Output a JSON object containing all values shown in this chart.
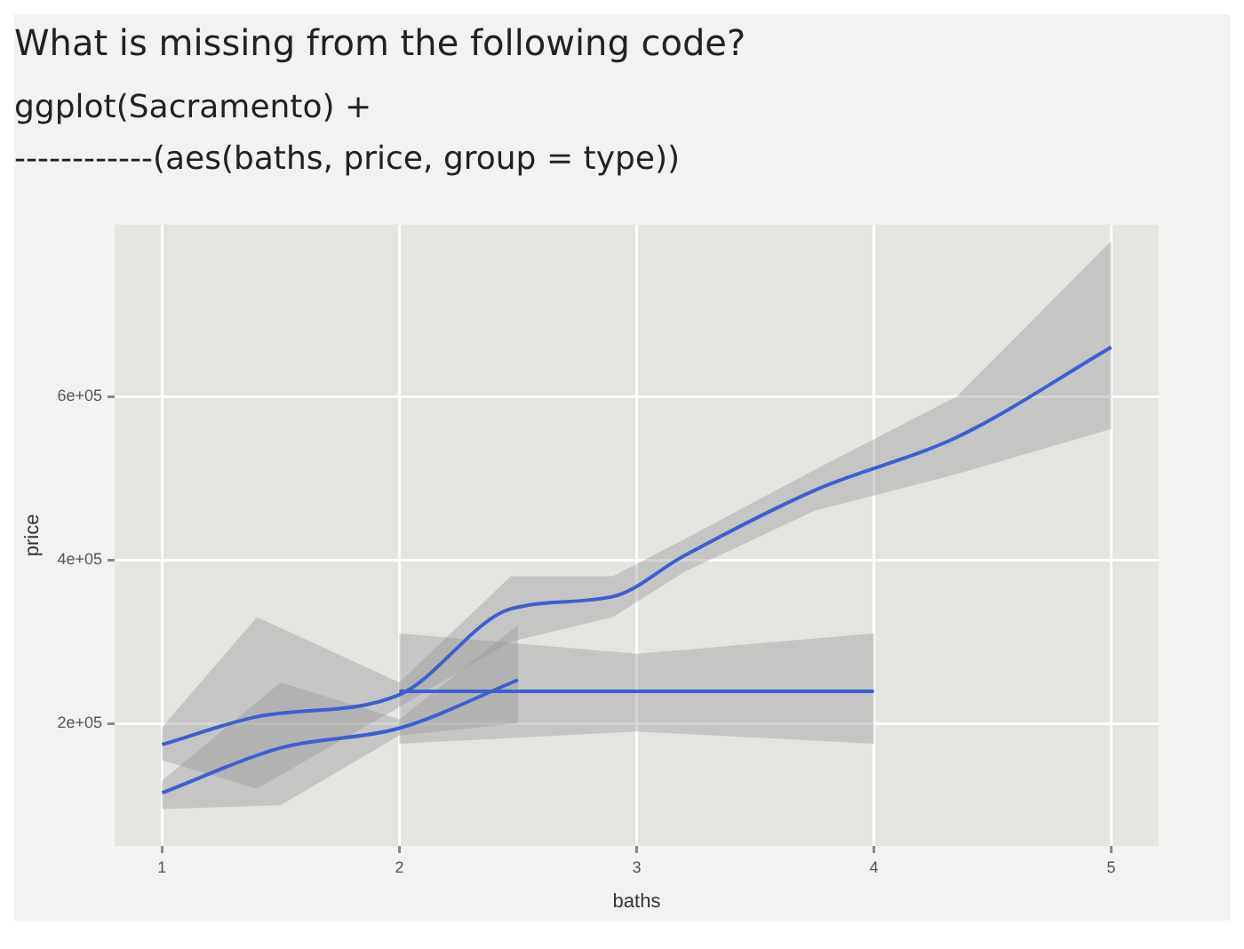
{
  "chart_data": {
    "type": "line",
    "title": "What is missing from the following code?",
    "annotations": [
      "ggplot(Sacramento) +",
      "------------(aes(baths, price, group = type))"
    ],
    "xlabel": "baths",
    "ylabel": "price",
    "xlim": [
      0.8,
      5.2
    ],
    "xticks": [
      1,
      2,
      3,
      4,
      5
    ],
    "ylim": [
      50000,
      810000
    ],
    "yticks": [
      {
        "value": 200000,
        "label": "2e+05"
      },
      {
        "value": 400000,
        "label": "4e+05"
      },
      {
        "value": 600000,
        "label": "6e+05"
      }
    ],
    "grid": true,
    "legend": false,
    "marker": "none",
    "line_style": "solid",
    "series": [
      {
        "color": "#3d5fd0",
        "x": [
          1,
          1.4,
          2,
          2.47,
          2.9,
          3.2,
          3.75,
          4.35,
          5
        ],
        "values": [
          174000,
          208000,
          235000,
          340000,
          355000,
          405000,
          485000,
          550000,
          660000
        ],
        "lower": [
          155000,
          120000,
          220000,
          300000,
          330000,
          385000,
          460000,
          505000,
          560000
        ],
        "upper": [
          195000,
          330000,
          250000,
          380000,
          380000,
          425000,
          510000,
          600000,
          790000
        ]
      },
      {
        "color": "#3d5fd0",
        "x": [
          1,
          1.5,
          2,
          2.5
        ],
        "values": [
          115000,
          170000,
          194000,
          253000
        ],
        "lower": [
          95000,
          100000,
          185000,
          200000
        ],
        "upper": [
          130000,
          250000,
          205000,
          320000
        ]
      },
      {
        "color": "#3d5fd0",
        "x": [
          2,
          3,
          4
        ],
        "values": [
          239000,
          239000,
          239000
        ],
        "lower": [
          175000,
          190000,
          175000
        ],
        "upper": [
          310000,
          285000,
          310000
        ]
      }
    ]
  }
}
